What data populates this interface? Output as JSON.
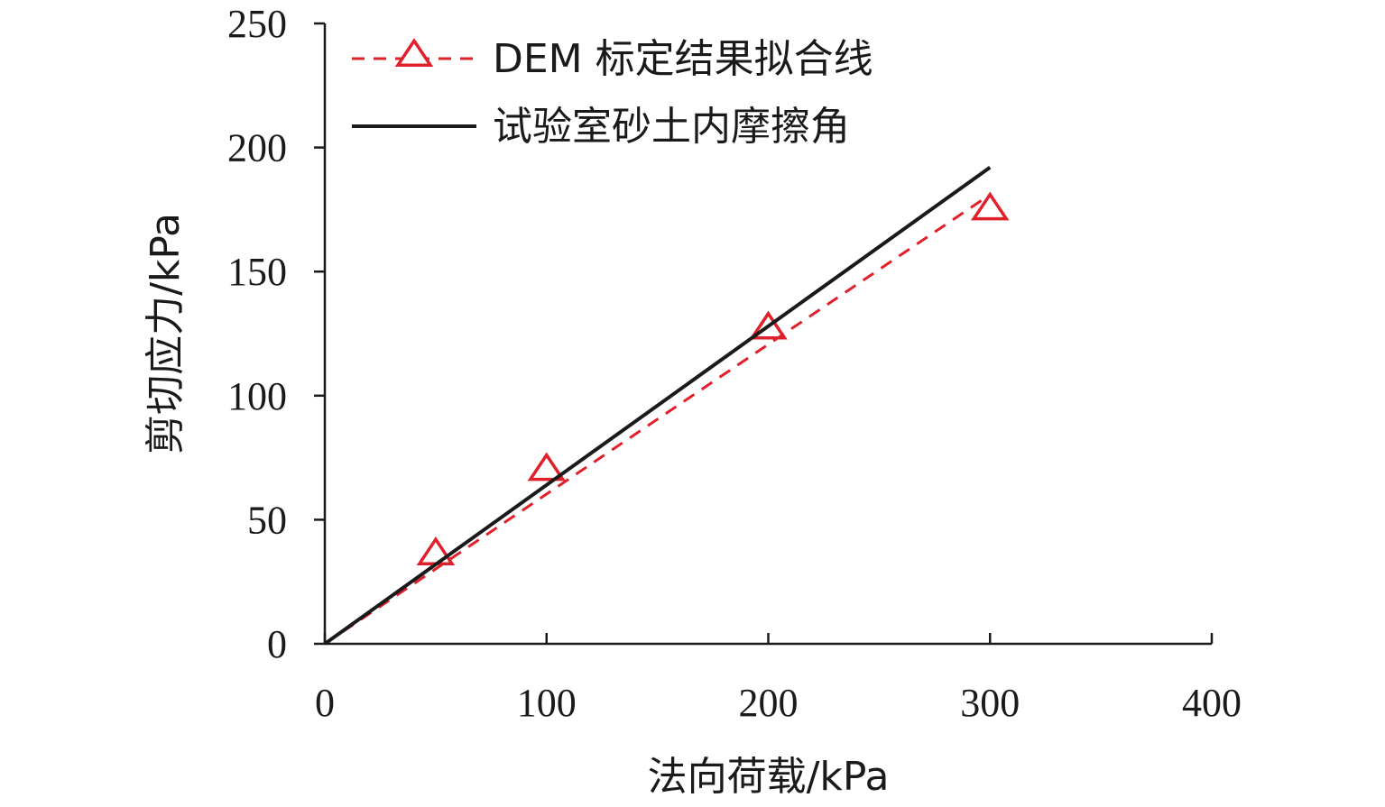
{
  "chart_data": {
    "type": "line",
    "title": "",
    "xlabel": "法向荷载/kPa",
    "ylabel": "剪切应力/kPa",
    "xlim": [
      0,
      400
    ],
    "ylim": [
      0,
      250
    ],
    "x_ticks": [
      0,
      100,
      200,
      300,
      400
    ],
    "y_ticks": [
      0,
      50,
      100,
      150,
      200,
      250
    ],
    "grid": false,
    "legend_position": "top-left",
    "series": [
      {
        "name": "DEM 标定结果拟合线",
        "style": "dashed",
        "color": "#e0202a",
        "marker": "open-triangle",
        "line_x": [
          0,
          300
        ],
        "line_y": [
          0,
          181
        ],
        "points_x": [
          50,
          100,
          200,
          300
        ],
        "points_y": [
          36,
          70,
          127,
          175
        ]
      },
      {
        "name": "试验室砂土内摩擦角",
        "style": "solid",
        "color": "#1a1a1a",
        "line_x": [
          0,
          300
        ],
        "line_y": [
          0,
          192
        ]
      }
    ]
  }
}
